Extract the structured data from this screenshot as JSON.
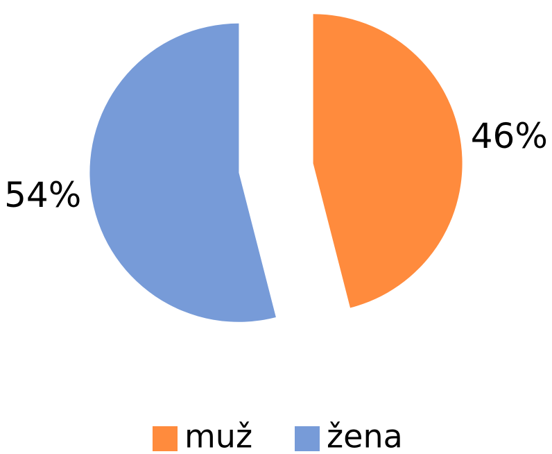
{
  "chart_data": {
    "type": "pie",
    "categories": [
      "muž",
      "žena"
    ],
    "values": [
      46,
      54
    ],
    "value_labels": [
      "46%",
      "54%"
    ],
    "colors": [
      "#FF8B3D",
      "#779BD8"
    ],
    "exploded": true,
    "legend": "bottom"
  }
}
